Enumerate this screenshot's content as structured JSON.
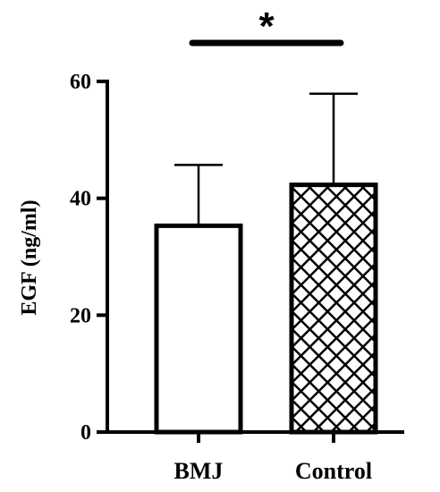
{
  "chart_data": {
    "type": "bar",
    "categories": [
      "BMJ",
      "Control"
    ],
    "values": [
      35.3,
      42.3
    ],
    "error_upper": [
      45.7,
      57.9
    ],
    "ylabel": "EGF (ng/ml)",
    "ylim": [
      0,
      60
    ],
    "yticks": [
      "0",
      "20",
      "40",
      "60"
    ],
    "fill_patterns": [
      "none",
      "crosshatch"
    ],
    "grid": false,
    "significance": {
      "label": "*",
      "between": [
        "BMJ",
        "Control"
      ]
    }
  }
}
